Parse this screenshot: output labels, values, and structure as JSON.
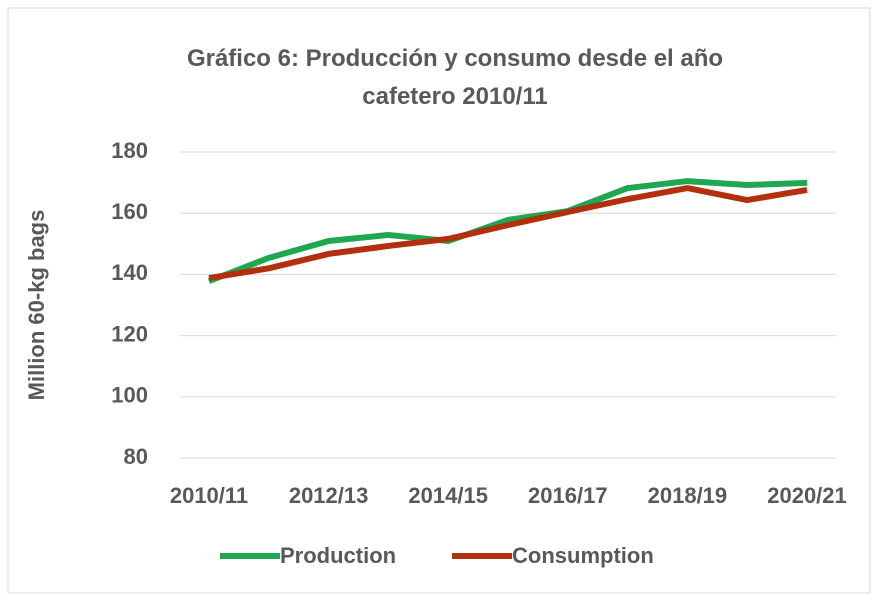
{
  "chart_data": {
    "type": "line",
    "title": "Gráfico 6: Producción y consumo desde el año cafetero 2010/11",
    "y_label": "Million 60-kg bags",
    "categories": [
      "2010/11",
      null,
      "2012/13",
      null,
      "2014/15",
      null,
      "2016/17",
      null,
      "2018/19",
      null,
      "2020/21"
    ],
    "series": [
      {
        "name": "Production",
        "color": "#1fa84f",
        "values": [
          137.8,
          145.4,
          150.9,
          152.9,
          150.9,
          157.8,
          160.7,
          168.2,
          170.5,
          169.2,
          169.9
        ]
      },
      {
        "name": "Consumption",
        "color": "#b3300f",
        "values": [
          138.8,
          142,
          146.7,
          149.3,
          151.6,
          156.1,
          160.4,
          164.6,
          168.2,
          164.3,
          167.6
        ]
      }
    ],
    "ylim": [
      80,
      180
    ],
    "yticks": [
      80,
      100,
      120,
      140,
      160,
      180
    ],
    "grid": true,
    "legend": "bottom"
  }
}
